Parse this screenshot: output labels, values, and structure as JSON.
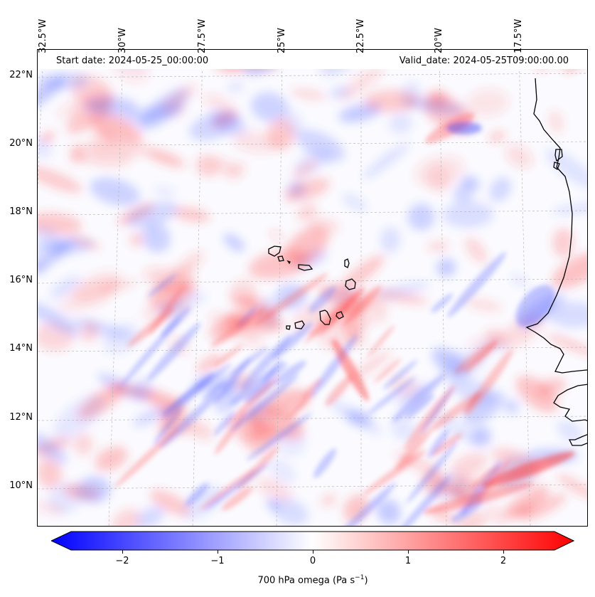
{
  "map": {
    "start_date": "Start date: 2024-05-25_00:00:00",
    "valid_date": "Valid_date: 2024-05-25T09:00:00.00",
    "longitude_labels": [
      "32.5°W",
      "30°W",
      "27.5°W",
      "25°W",
      "22.5°W",
      "20°W",
      "17.5°W"
    ],
    "latitude_labels": [
      "22°N",
      "20°N",
      "18°N",
      "16°N",
      "14°N",
      "12°N",
      "10°N"
    ],
    "field": "700 hPa omega",
    "features": [
      "coastline-west-africa",
      "cape-verde-islands"
    ],
    "colormap": {
      "negative": "#0000ff",
      "zero": "#ffffff",
      "positive": "#ff0000"
    }
  },
  "colorbar": {
    "label": "700 hPa omega (Pa s",
    "label_sup": "−1",
    "label_close": ")",
    "ticks": [
      "−2",
      "−1",
      "0",
      "1",
      "2"
    ],
    "range": [
      -2.75,
      2.75
    ],
    "extend": "both"
  }
}
